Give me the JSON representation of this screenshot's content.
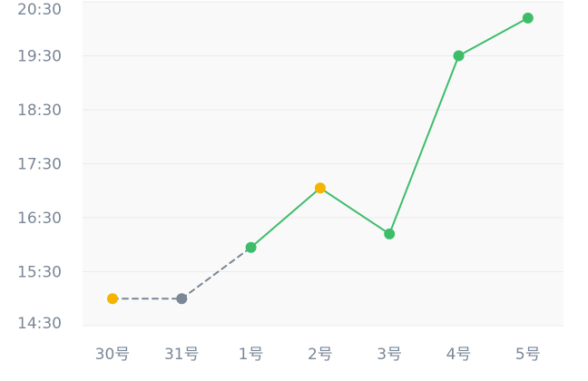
{
  "chart_data": {
    "type": "line",
    "title": "",
    "xlabel": "",
    "ylabel": "",
    "categories": [
      "30号",
      "31号",
      "1号",
      "2号",
      "3号",
      "4号",
      "5号"
    ],
    "y_unit": "time of day (hours)",
    "values": [
      15.0,
      15.0,
      15.95,
      17.05,
      16.2,
      19.5,
      20.2
    ],
    "y_ticks": [
      {
        "value": 14.5,
        "label": "14:30"
      },
      {
        "value": 15.5,
        "label": "15:30"
      },
      {
        "value": 16.5,
        "label": "16:30"
      },
      {
        "value": 17.5,
        "label": "17:30"
      },
      {
        "value": 18.5,
        "label": "18:30"
      },
      {
        "value": 19.5,
        "label": "19:30"
      },
      {
        "value": 20.5,
        "label": "20:30"
      }
    ],
    "ylim": [
      14.5,
      20.5
    ],
    "grid": true,
    "legend": "none",
    "segment_styles": [
      "dashed",
      "dashed",
      "solid",
      "solid",
      "solid",
      "solid"
    ],
    "point_colors": [
      "#f5b400",
      "#7a8797",
      "#3dbd6a",
      "#f5b400",
      "#3dbd6a",
      "#3dbd6a",
      "#3dbd6a"
    ],
    "colors": {
      "solid_line": "#3dbd6a",
      "dashed_line": "#7a8797",
      "plot_background": "#f9f9f9",
      "grid": "#ebebeb",
      "tick_text": "#7a8797"
    }
  }
}
